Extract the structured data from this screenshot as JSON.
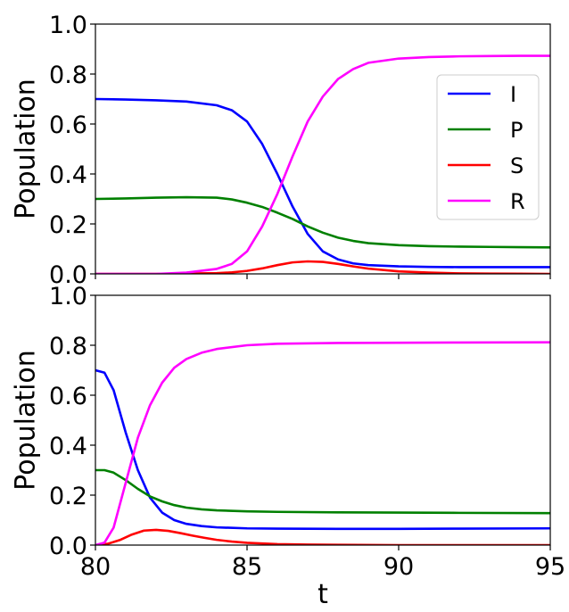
{
  "chart_data": [
    {
      "type": "line",
      "title": "",
      "xlabel": "",
      "ylabel": "Population",
      "xlim": [
        80,
        95
      ],
      "ylim": [
        0,
        1
      ],
      "yticks": [
        "0.0",
        "0.2",
        "0.4",
        "0.6",
        "0.8",
        "1.0"
      ],
      "grid": false,
      "legend": "center-right",
      "series": [
        {
          "name": "I",
          "color": "#0000ff",
          "x": [
            80,
            81,
            82,
            83,
            84,
            84.5,
            85,
            85.5,
            86,
            86.5,
            87,
            87.5,
            88,
            88.5,
            89,
            90,
            91,
            92,
            93,
            94,
            95
          ],
          "y": [
            0.7,
            0.698,
            0.695,
            0.69,
            0.675,
            0.655,
            0.61,
            0.52,
            0.4,
            0.27,
            0.16,
            0.09,
            0.058,
            0.042,
            0.035,
            0.03,
            0.028,
            0.027,
            0.027,
            0.027,
            0.027
          ]
        },
        {
          "name": "P",
          "color": "#008000",
          "x": [
            80,
            81,
            82,
            83,
            84,
            84.5,
            85,
            85.5,
            86,
            86.5,
            87,
            87.5,
            88,
            88.5,
            89,
            90,
            91,
            92,
            93,
            94,
            95
          ],
          "y": [
            0.3,
            0.302,
            0.305,
            0.307,
            0.305,
            0.298,
            0.285,
            0.268,
            0.245,
            0.22,
            0.19,
            0.165,
            0.145,
            0.132,
            0.123,
            0.115,
            0.111,
            0.109,
            0.108,
            0.107,
            0.106
          ]
        },
        {
          "name": "S",
          "color": "#ff0000",
          "x": [
            80,
            82,
            84,
            84.5,
            85,
            85.5,
            86,
            86.5,
            87,
            87.5,
            88,
            88.5,
            89,
            90,
            91,
            92,
            93,
            94,
            95
          ],
          "y": [
            0.0,
            0.0,
            0.003,
            0.006,
            0.012,
            0.022,
            0.035,
            0.046,
            0.05,
            0.048,
            0.04,
            0.03,
            0.021,
            0.01,
            0.005,
            0.002,
            0.001,
            0.0005,
            0.0
          ]
        },
        {
          "name": "R",
          "color": "#ff00ff",
          "x": [
            80,
            81,
            82,
            83,
            84,
            84.5,
            85,
            85.5,
            86,
            86.5,
            87,
            87.5,
            88,
            88.5,
            89,
            90,
            91,
            92,
            93,
            94,
            95
          ],
          "y": [
            0.0,
            0.0,
            0.0,
            0.005,
            0.02,
            0.04,
            0.09,
            0.19,
            0.32,
            0.47,
            0.61,
            0.71,
            0.78,
            0.82,
            0.845,
            0.862,
            0.868,
            0.871,
            0.872,
            0.873,
            0.873
          ]
        }
      ]
    },
    {
      "type": "line",
      "title": "",
      "xlabel": "t",
      "ylabel": "Population",
      "xlim": [
        80,
        95
      ],
      "ylim": [
        0,
        1
      ],
      "xticks": [
        "80",
        "85",
        "90",
        "95"
      ],
      "yticks": [
        "0.0",
        "0.2",
        "0.4",
        "0.6",
        "0.8",
        "1.0"
      ],
      "grid": false,
      "series": [
        {
          "name": "I",
          "color": "#0000ff",
          "x": [
            80,
            80.3,
            80.6,
            81,
            81.4,
            81.8,
            82.2,
            82.6,
            83,
            83.5,
            84,
            85,
            86,
            88,
            90,
            92,
            95
          ],
          "y": [
            0.7,
            0.69,
            0.62,
            0.45,
            0.3,
            0.19,
            0.13,
            0.1,
            0.085,
            0.076,
            0.071,
            0.067,
            0.066,
            0.065,
            0.065,
            0.066,
            0.067
          ]
        },
        {
          "name": "P",
          "color": "#008000",
          "x": [
            80,
            80.3,
            80.6,
            81,
            81.4,
            81.8,
            82.2,
            82.6,
            83,
            83.5,
            84,
            85,
            86,
            88,
            90,
            92,
            95
          ],
          "y": [
            0.3,
            0.3,
            0.29,
            0.26,
            0.225,
            0.195,
            0.175,
            0.16,
            0.15,
            0.143,
            0.139,
            0.135,
            0.133,
            0.131,
            0.13,
            0.129,
            0.128
          ]
        },
        {
          "name": "S",
          "color": "#ff0000",
          "x": [
            80,
            80.4,
            80.8,
            81.2,
            81.6,
            82,
            82.4,
            82.8,
            83.2,
            83.6,
            84,
            84.5,
            85,
            86,
            87,
            88,
            90,
            95
          ],
          "y": [
            0.0,
            0.005,
            0.02,
            0.042,
            0.058,
            0.061,
            0.057,
            0.048,
            0.038,
            0.029,
            0.021,
            0.014,
            0.009,
            0.004,
            0.002,
            0.001,
            0.0,
            0.0
          ]
        },
        {
          "name": "R",
          "color": "#ff00ff",
          "x": [
            80,
            80.3,
            80.6,
            81,
            81.4,
            81.8,
            82.2,
            82.6,
            83,
            83.5,
            84,
            85,
            86,
            88,
            90,
            92,
            95
          ],
          "y": [
            0.0,
            0.01,
            0.07,
            0.25,
            0.43,
            0.56,
            0.65,
            0.71,
            0.745,
            0.77,
            0.785,
            0.8,
            0.806,
            0.809,
            0.81,
            0.811,
            0.812
          ]
        }
      ]
    }
  ]
}
